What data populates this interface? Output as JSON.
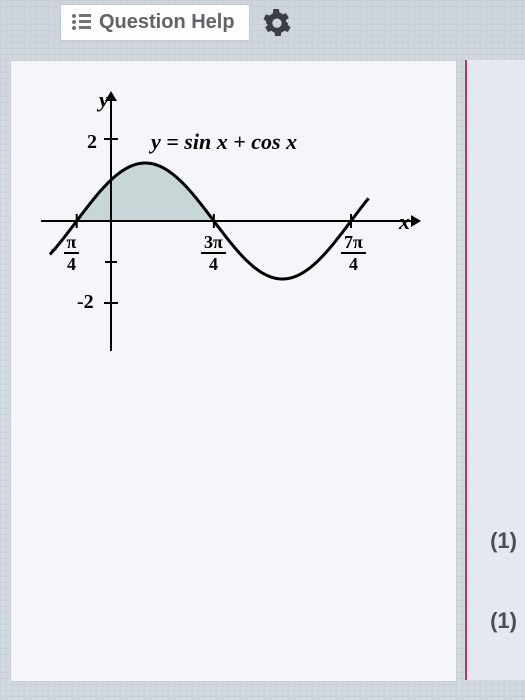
{
  "header": {
    "button_label": "Question Help",
    "gear_color": "#3b3f44"
  },
  "equation": "y = sin x + cos x",
  "chart": {
    "type": "line",
    "function": "sin(x)+cos(x)",
    "shaded_region": {
      "from_x": -0.785398,
      "to_x": 2.356194,
      "fill": "#c7d7d8"
    },
    "x_domain": [
      -1.2,
      6.2
    ],
    "y_domain": [
      -2.5,
      2.5
    ],
    "yticks": [
      {
        "value": 2,
        "label": "2"
      },
      {
        "value": -2,
        "label": "-2"
      }
    ],
    "xticks": [
      {
        "value": -0.785398,
        "numer": "π",
        "denom": "4",
        "sign": "-"
      },
      {
        "value": 2.356194,
        "numer": "3π",
        "denom": "4",
        "sign": ""
      },
      {
        "value": 5.497787,
        "numer": "7π",
        "denom": "4",
        "sign": ""
      }
    ],
    "axis_labels": {
      "x": "x",
      "y": "y"
    },
    "curve_color": "#000000",
    "curve_width": 3,
    "shade_border": "#000000",
    "background": "#f4f6f9"
  },
  "answers": [
    {
      "text": "(1)"
    },
    {
      "text": "(1)"
    }
  ]
}
